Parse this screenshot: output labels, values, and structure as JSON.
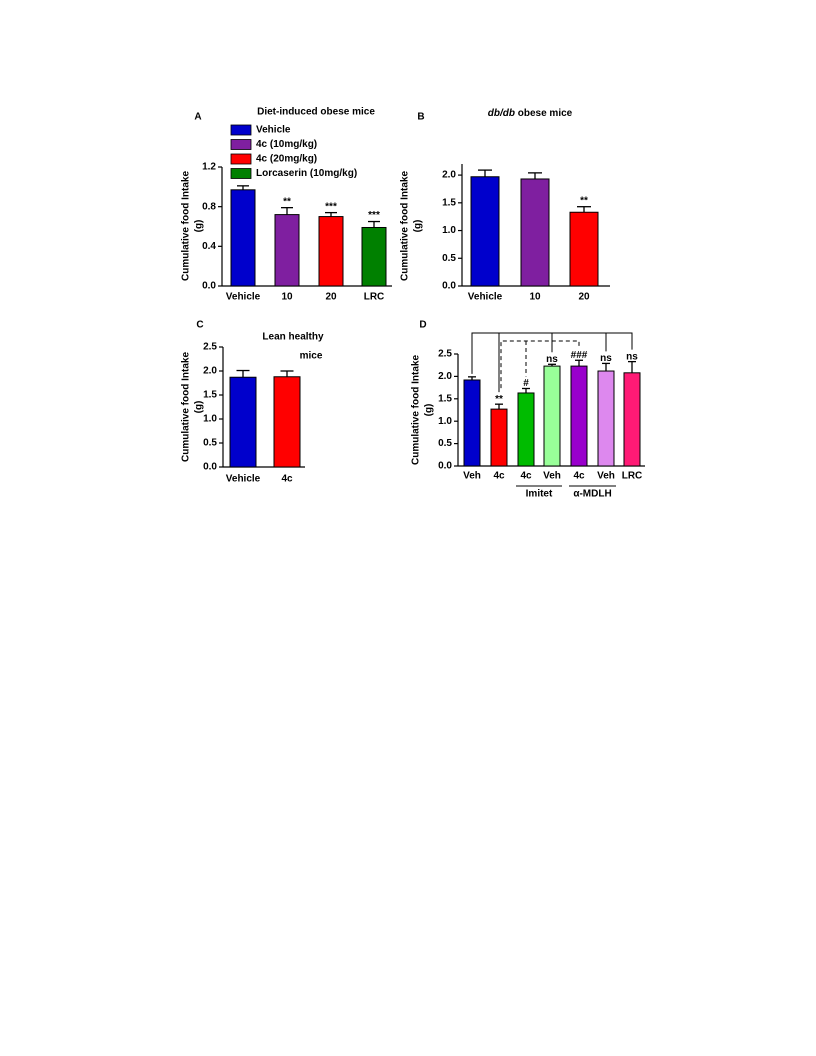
{
  "chart_data": [
    {
      "type": "bar",
      "panel": "A",
      "title": "Diet-induced obese mice",
      "ylabel": [
        "Cumulative food Intake",
        "(g)"
      ],
      "legend": [
        {
          "name": "Vehicle",
          "color": "#0000cc"
        },
        {
          "name": "4c (10mg/kg)",
          "color": "#7f1fa0"
        },
        {
          "name": "4c (20mg/kg)",
          "color": "#ff0000"
        },
        {
          "name": "Lorcaserin (10mg/kg)",
          "color": "#008000"
        }
      ],
      "categories": [
        "Vehicle",
        "10",
        "20",
        "LRC"
      ],
      "values": [
        0.97,
        0.72,
        0.7,
        0.59
      ],
      "errors": [
        0.04,
        0.07,
        0.04,
        0.06
      ],
      "colors": [
        "#0000cc",
        "#7f1fa0",
        "#ff0000",
        "#008000"
      ],
      "annotations": [
        null,
        "**",
        "***",
        "***"
      ],
      "ylim": [
        0,
        1.2
      ],
      "yticks": [
        {
          "value": 0,
          "label": "0.0"
        },
        0.4,
        0.8,
        1.2
      ]
    },
    {
      "type": "bar",
      "panel": "B",
      "title_italic": "db/db",
      "title": "obese mice",
      "ylabel": [
        "Cumulative food Intake",
        "(g)"
      ],
      "categories": [
        "Vehicle",
        "10",
        "20"
      ],
      "values": [
        1.97,
        1.93,
        1.33
      ],
      "errors": [
        0.12,
        0.11,
        0.1
      ],
      "colors": [
        "#0000cc",
        "#7f1fa0",
        "#ff0000"
      ],
      "annotations": [
        null,
        null,
        "**"
      ],
      "ylim": [
        0,
        2.2
      ],
      "yticks": [
        {
          "value": 0,
          "label": "0.0"
        },
        0.5,
        {
          "value": 1,
          "label": "1.0"
        },
        1.5,
        {
          "value": 2,
          "label": "2.0"
        }
      ]
    },
    {
      "type": "bar",
      "panel": "C",
      "title": [
        "Lean healthy",
        "mice"
      ],
      "ylabel": [
        "Cumulative food Intake",
        "(g)"
      ],
      "categories": [
        "Vehicle",
        "4c"
      ],
      "values": [
        1.87,
        1.88
      ],
      "errors": [
        0.14,
        0.12
      ],
      "colors": [
        "#0000cc",
        "#ff0000"
      ],
      "ylim": [
        0,
        2.5
      ],
      "yticks": [
        {
          "value": 0,
          "label": "0.0"
        },
        0.5,
        {
          "value": 1,
          "label": "1.0"
        },
        1.5,
        {
          "value": 2,
          "label": "2.0"
        },
        2.5
      ]
    },
    {
      "type": "bar",
      "panel": "D",
      "ylabel": [
        "Cumulative food Intake",
        "(g)"
      ],
      "categories": [
        "Veh",
        "4c",
        "4c",
        "Veh",
        "4c",
        "Veh",
        "LRC"
      ],
      "groups": [
        "Imitet",
        "α-MDLH"
      ],
      "values": [
        1.92,
        1.27,
        1.63,
        2.23,
        2.23,
        2.12,
        2.08
      ],
      "errors": [
        0.07,
        0.11,
        0.1,
        0.04,
        0.13,
        0.17,
        0.25
      ],
      "colors": [
        "#0000cc",
        "#ff0000",
        "#00bb00",
        "#99ff99",
        "#9900cc",
        "#dd88ee",
        "#ff1a75"
      ],
      "annotations": [
        null,
        "**",
        "#",
        "ns",
        "###",
        "ns",
        "ns"
      ],
      "ylim": [
        0,
        2.5
      ],
      "yticks": [
        {
          "value": 0,
          "label": "0.0"
        },
        0.5,
        {
          "value": 1,
          "label": "1.0"
        },
        1.5,
        {
          "value": 2,
          "label": "2.0"
        },
        2.5
      ]
    }
  ]
}
